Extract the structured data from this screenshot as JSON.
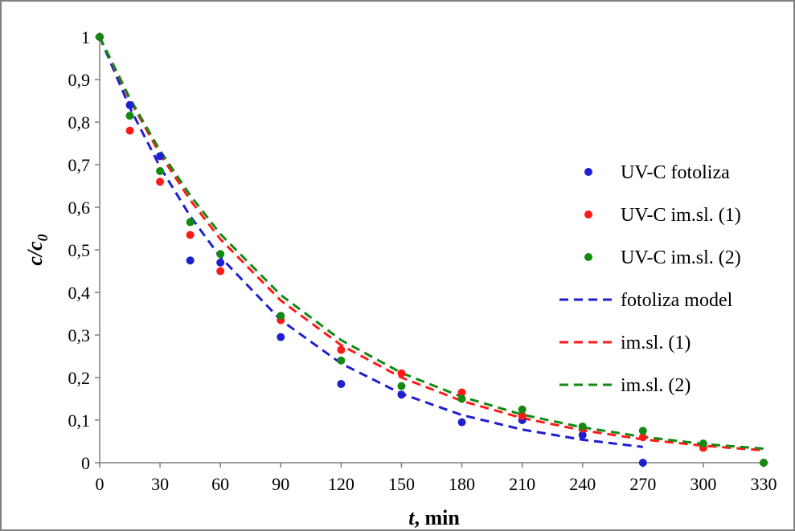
{
  "chart_data": {
    "type": "scatter",
    "xlabel": {
      "italic": "t",
      "rest": ", min"
    },
    "ylabel": {
      "italic": "c/c",
      "sub": "0"
    },
    "xlim": [
      0,
      330
    ],
    "ylim": [
      0,
      1
    ],
    "xticks": [
      "0",
      "30",
      "60",
      "90",
      "120",
      "150",
      "180",
      "210",
      "240",
      "270",
      "300",
      "330"
    ],
    "yticks": [
      "0",
      "0,1",
      "0,2",
      "0,3",
      "0,4",
      "0,5",
      "0,6",
      "0,7",
      "0,8",
      "0,9",
      "1"
    ],
    "grid": false,
    "legend_position": "right",
    "series": [
      {
        "name": "UV-C fotoliza",
        "kind": "points",
        "color": "#1f1fd0",
        "x": [
          0,
          15,
          30,
          45,
          60,
          90,
          120,
          150,
          180,
          210,
          240,
          270
        ],
        "y": [
          1.0,
          0.84,
          0.72,
          0.475,
          0.47,
          0.295,
          0.185,
          0.16,
          0.095,
          0.1,
          0.065,
          0.0
        ]
      },
      {
        "name": "UV-C im.sl. (1)",
        "kind": "points",
        "color": "#ff1a1a",
        "x": [
          0,
          15,
          30,
          45,
          60,
          90,
          120,
          150,
          180,
          210,
          240,
          270,
          300,
          330
        ],
        "y": [
          1.0,
          0.78,
          0.66,
          0.535,
          0.45,
          0.335,
          0.265,
          0.21,
          0.165,
          0.11,
          0.08,
          0.06,
          0.035,
          0.0
        ]
      },
      {
        "name": "UV-C im.sl. (2)",
        "kind": "points",
        "color": "#128a12",
        "x": [
          0,
          15,
          30,
          45,
          60,
          90,
          120,
          150,
          180,
          210,
          240,
          270,
          300,
          330
        ],
        "y": [
          1.0,
          0.815,
          0.685,
          0.565,
          0.49,
          0.345,
          0.24,
          0.18,
          0.15,
          0.125,
          0.085,
          0.075,
          0.045,
          0.0
        ]
      },
      {
        "name": "fotoliza model",
        "kind": "dashed-line",
        "color": "#1f1fd0",
        "x": [
          0,
          15,
          30,
          45,
          60,
          90,
          120,
          150,
          180,
          210,
          240,
          270
        ],
        "y": [
          1.0,
          0.834,
          0.695,
          0.579,
          0.483,
          0.335,
          0.233,
          0.162,
          0.112,
          0.078,
          0.054,
          0.037
        ]
      },
      {
        "name": "im.sl. (1)",
        "kind": "dashed-line",
        "color": "#ff1a1a",
        "x": [
          0,
          15,
          30,
          45,
          60,
          90,
          120,
          150,
          180,
          210,
          240,
          270,
          300,
          330
        ],
        "y": [
          1.0,
          0.852,
          0.725,
          0.617,
          0.525,
          0.381,
          0.276,
          0.2,
          0.145,
          0.105,
          0.076,
          0.055,
          0.04,
          0.029
        ]
      },
      {
        "name": "im.sl. (2)",
        "kind": "dashed-line",
        "color": "#128a12",
        "x": [
          0,
          15,
          30,
          45,
          60,
          90,
          120,
          150,
          180,
          210,
          240,
          270,
          300,
          330
        ],
        "y": [
          1.0,
          0.856,
          0.733,
          0.628,
          0.537,
          0.394,
          0.288,
          0.211,
          0.155,
          0.113,
          0.083,
          0.061,
          0.044,
          0.033
        ]
      }
    ]
  }
}
